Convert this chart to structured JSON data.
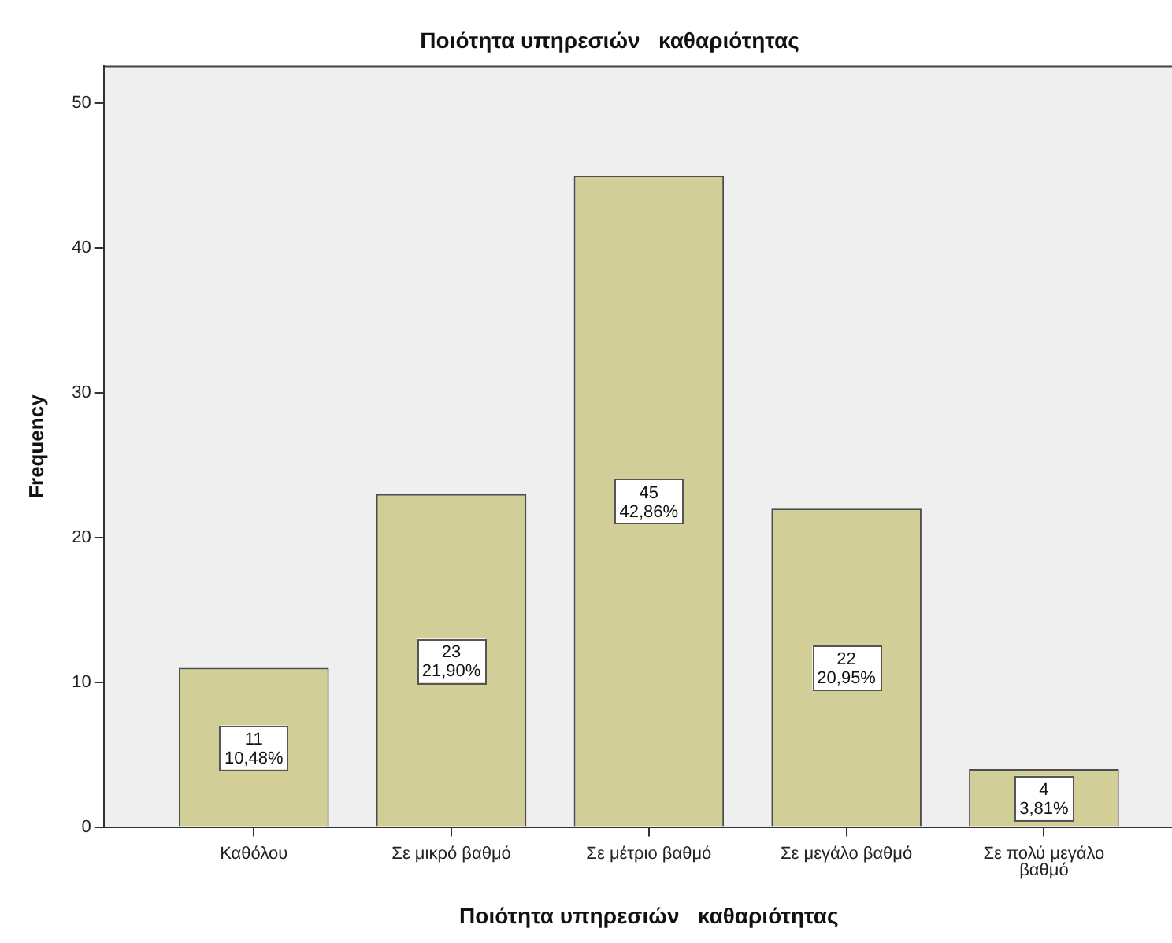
{
  "chart_data": {
    "type": "bar",
    "title": "Ποιότητα υπηρεσιών   καθαριότητας",
    "xlabel": "Ποιότητα υπηρεσιών   καθαριότητας",
    "ylabel": "Frequency",
    "categories": [
      "Καθόλου",
      "Σε μικρό βαθμό",
      "Σε μέτριο βαθμό",
      "Σε μεγάλο βαθμό",
      "Σε πολύ μεγάλο βαθμό"
    ],
    "values": [
      11,
      23,
      45,
      22,
      4
    ],
    "value_labels": [
      "11\n10,48%",
      "23\n21,90%",
      "45\n42,86%",
      "22\n20,95%",
      "4\n3,81%"
    ],
    "color": "#d2ce98",
    "ylim": [
      0,
      52.6
    ],
    "yticks": [
      0,
      10,
      20,
      30,
      40,
      50
    ]
  }
}
